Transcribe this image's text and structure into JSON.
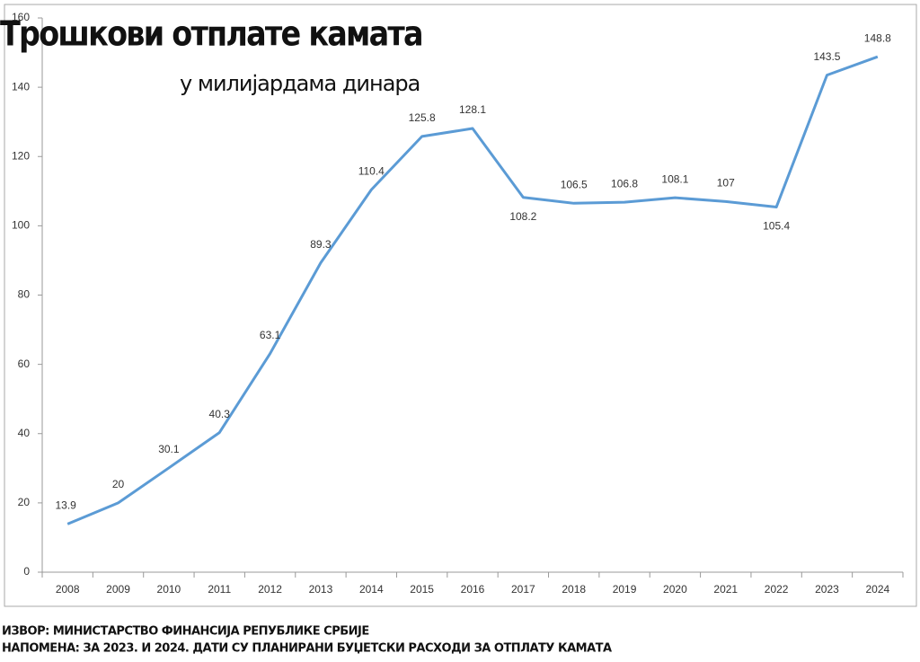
{
  "chart_data": {
    "type": "line",
    "title": "Трошкови отплате камата",
    "subtitle": "у милијардама динара",
    "categories": [
      "2008",
      "2009",
      "2010",
      "2011",
      "2012",
      "2013",
      "2014",
      "2015",
      "2016",
      "2017",
      "2018",
      "2019",
      "2020",
      "2021",
      "2022",
      "2023",
      "2024"
    ],
    "values": [
      13.9,
      20,
      30.1,
      40.3,
      63.1,
      89.3,
      110.4,
      125.8,
      128.1,
      108.2,
      106.5,
      106.8,
      108.1,
      107,
      105.4,
      143.5,
      148.8
    ],
    "color": "#5b9bd5",
    "ylim": [
      0,
      160
    ],
    "yticks": [
      0,
      20,
      40,
      60,
      80,
      100,
      120,
      140,
      160
    ],
    "grid": false
  },
  "footer": {
    "source": "ИЗВОР: МИНИСТАРСТВО ФИНАНСИЈА РЕПУБЛИКЕ СРБИЈЕ",
    "note": "НАПОМЕНА: ЗА 2023. И 2024. ДАТИ СУ ПЛАНИРАНИ БУЏЕТСКИ РАСХОДИ ЗА ОТПЛАТУ КАМАТА"
  }
}
